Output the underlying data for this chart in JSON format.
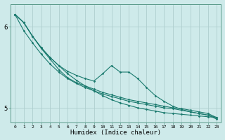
{
  "xlabel": "Humidex (Indice chaleur)",
  "ylabel": "",
  "background_color": "#ceeaea",
  "grid_color": "#aecece",
  "line_color": "#1a7a6e",
  "xlim": [
    -0.5,
    23.5
  ],
  "ylim": [
    4.82,
    6.28
  ],
  "yticks": [
    5,
    6
  ],
  "xticks": [
    0,
    1,
    2,
    3,
    4,
    5,
    6,
    7,
    8,
    9,
    10,
    11,
    12,
    13,
    14,
    15,
    16,
    17,
    18,
    19,
    20,
    21,
    22,
    23
  ],
  "lines": [
    [
      6.15,
      6.05,
      5.88,
      5.74,
      5.62,
      5.52,
      5.42,
      5.34,
      5.27,
      5.21,
      5.15,
      5.1,
      5.06,
      5.03,
      5.0,
      4.98,
      4.96,
      4.94,
      4.93,
      4.92,
      4.91,
      4.9,
      4.89,
      4.88
    ],
    [
      6.15,
      6.05,
      5.88,
      5.74,
      5.62,
      5.52,
      5.45,
      5.4,
      5.36,
      5.33,
      5.42,
      5.52,
      5.44,
      5.44,
      5.36,
      5.25,
      5.15,
      5.08,
      5.02,
      4.98,
      4.95,
      4.93,
      4.91,
      4.88
    ],
    [
      6.15,
      6.05,
      5.88,
      5.73,
      5.6,
      5.47,
      5.37,
      5.31,
      5.27,
      5.23,
      5.19,
      5.16,
      5.13,
      5.1,
      5.08,
      5.06,
      5.04,
      5.02,
      5.0,
      4.99,
      4.97,
      4.95,
      4.93,
      4.88
    ],
    [
      6.15,
      5.95,
      5.8,
      5.66,
      5.54,
      5.44,
      5.36,
      5.3,
      5.25,
      5.21,
      5.17,
      5.14,
      5.11,
      5.08,
      5.06,
      5.04,
      5.02,
      5.0,
      4.99,
      4.97,
      4.95,
      4.93,
      4.91,
      4.86
    ]
  ]
}
